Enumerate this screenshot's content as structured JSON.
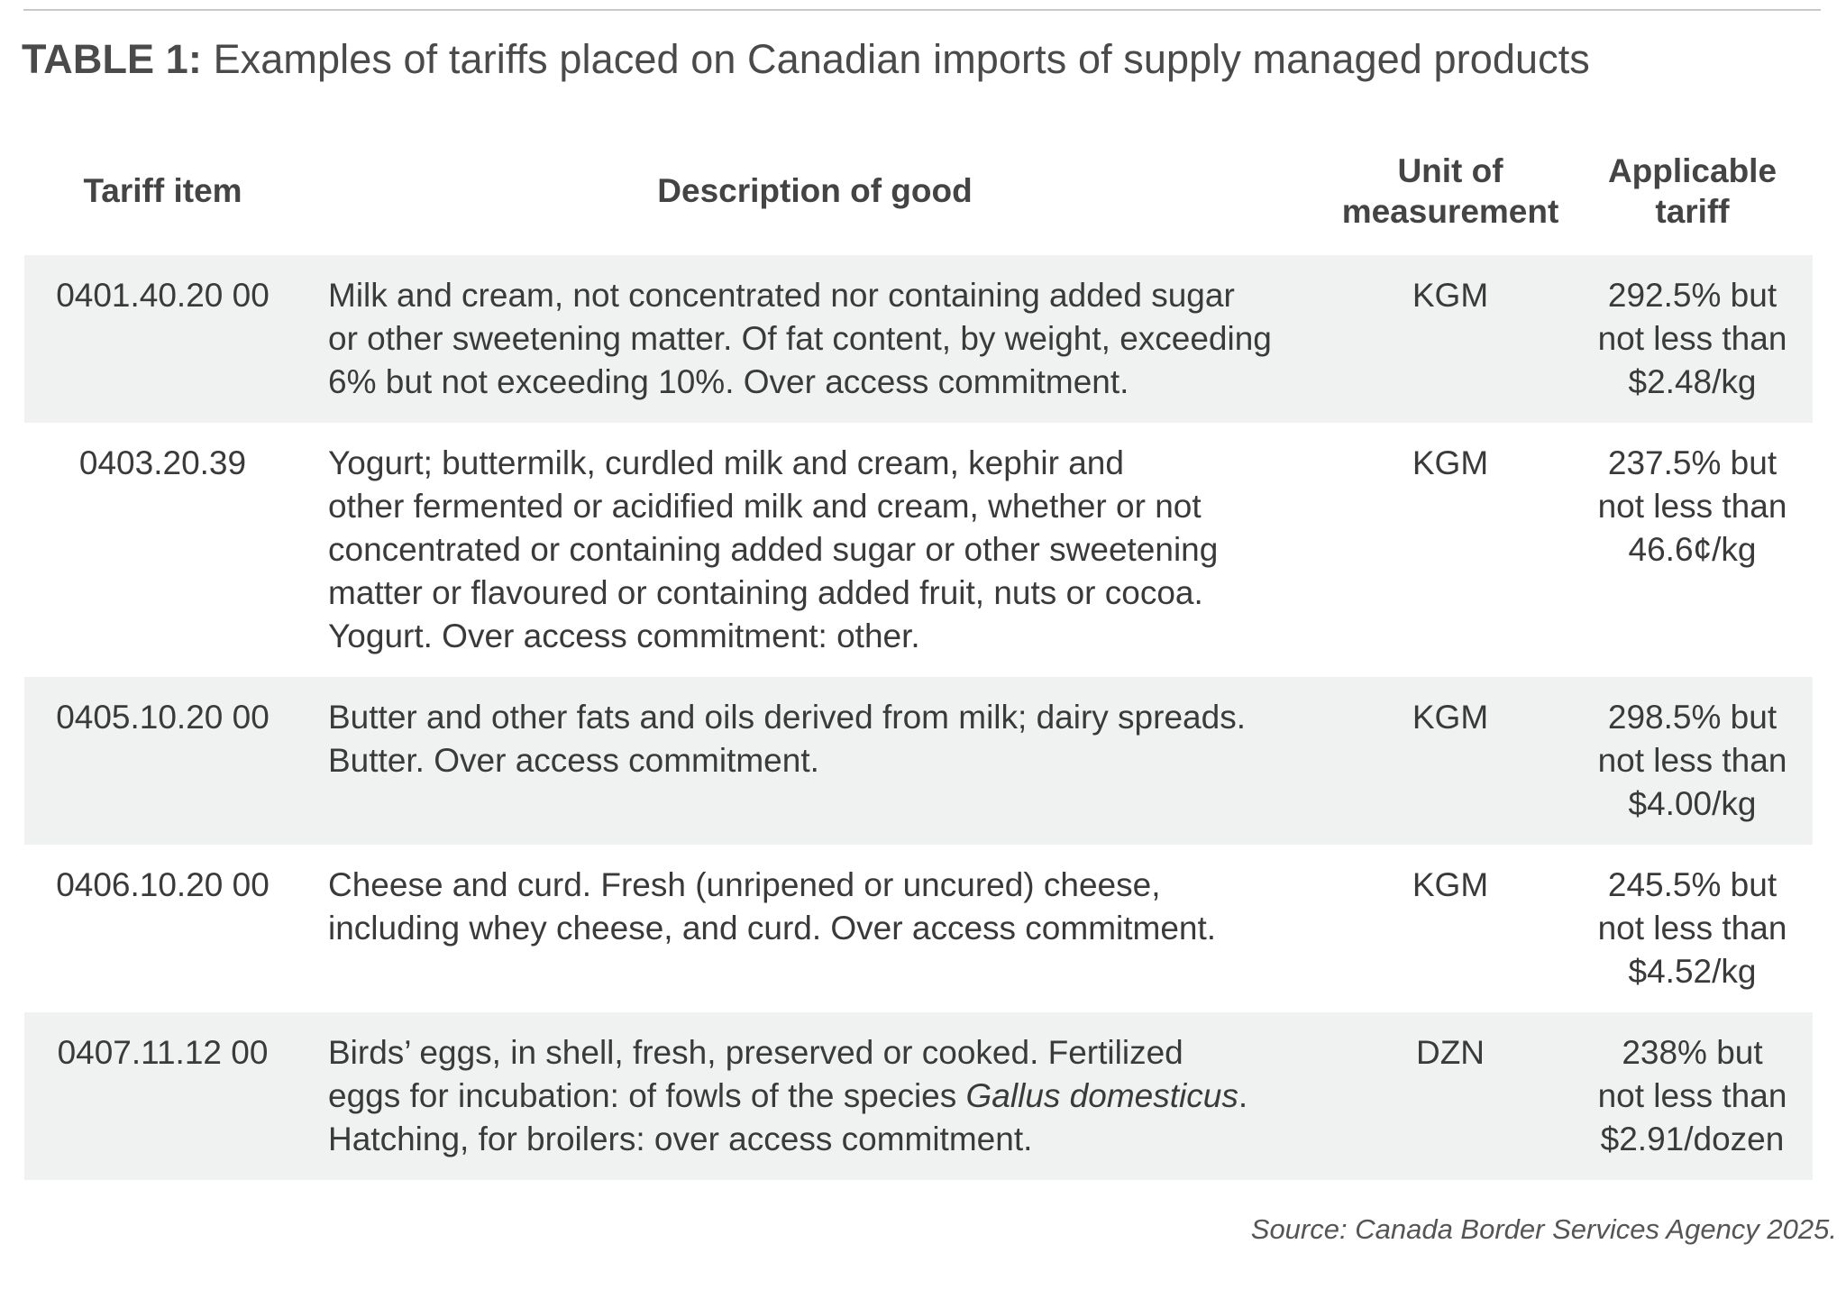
{
  "title": {
    "label": "TABLE 1:",
    "text": " Examples of tariffs placed on Canadian imports of supply managed products"
  },
  "table": {
    "headers": {
      "tariff_item": "Tariff item",
      "description": "Description of good",
      "unit": [
        "Unit of",
        "measurement"
      ],
      "tariff": [
        "Applicable",
        "tariff"
      ]
    },
    "rows": [
      {
        "item": "0401.40.20 00",
        "description": [
          "Milk and cream, not concentrated nor containing added sugar",
          "or other sweetening matter. Of fat content, by weight, exceeding",
          "6% but not exceeding 10%. Over access commitment."
        ],
        "unit": "KGM",
        "tariff": [
          "292.5% but",
          "not less than",
          "$2.48/kg"
        ]
      },
      {
        "item": "0403.20.39",
        "description": [
          "Yogurt; buttermilk, curdled milk and cream, kephir and",
          "other fermented or acidified milk and cream, whether or not",
          "concentrated or containing added sugar or other sweetening",
          "matter or flavoured or containing added fruit, nuts or cocoa.",
          "Yogurt. Over access commitment: other."
        ],
        "unit": "KGM",
        "tariff": [
          "237.5% but",
          "not less than",
          "46.6¢/kg"
        ]
      },
      {
        "item": "0405.10.20 00",
        "description": [
          "Butter and other fats and oils derived from milk; dairy spreads.",
          "Butter. Over access commitment."
        ],
        "unit": "KGM",
        "tariff": [
          "298.5% but",
          "not less than",
          "$4.00/kg"
        ]
      },
      {
        "item": "0406.10.20 00",
        "description": [
          "Cheese and curd. Fresh (unripened or uncured) cheese,",
          "including whey cheese, and curd. Over access commitment."
        ],
        "unit": "KGM",
        "tariff": [
          "245.5% but",
          "not less than",
          "$4.52/kg"
        ]
      },
      {
        "item": "0407.11.12 00",
        "description": [
          "Birds’ eggs, in shell, fresh, preserved or cooked. Fertilized",
          "eggs for incubation: of fowls of the species ",
          "Gallus domesticus",
          ".",
          "Hatching, for broilers: over access commitment."
        ],
        "unit": "DZN",
        "tariff": [
          "238% but",
          "not less than",
          "$2.91/dozen"
        ]
      }
    ]
  },
  "source": "Source: Canada Border Services Agency 2025."
}
